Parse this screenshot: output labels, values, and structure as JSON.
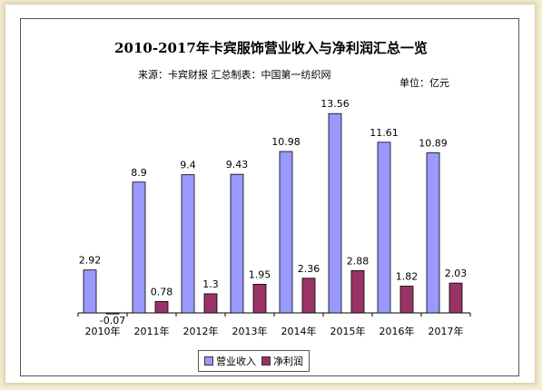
{
  "header": {
    "title": "2010-2017年卡宾服饰营业收入与净利润汇总一览",
    "subtitle": "来源：卡宾财报   汇总制表：中国第一纺织网",
    "unit": "单位：亿元"
  },
  "colors": {
    "revenue": "#9999ff",
    "profit": "#993366"
  },
  "chart_data": {
    "type": "bar",
    "categories": [
      "2010年",
      "2011年",
      "2012年",
      "2013年",
      "2014年",
      "2015年",
      "2016年",
      "2017年"
    ],
    "series": [
      {
        "name": "营业收入",
        "values": [
          2.92,
          8.9,
          9.4,
          9.43,
          10.98,
          13.56,
          11.61,
          10.89
        ]
      },
      {
        "name": "净利润",
        "values": [
          -0.07,
          0.78,
          1.3,
          1.95,
          2.36,
          2.88,
          1.82,
          2.03
        ]
      }
    ],
    "data_labels": {
      "revenue": [
        "2.92",
        "8.9",
        "9.4",
        "9.43",
        "10.98",
        "13.56",
        "11.61",
        "10.89"
      ],
      "profit": [
        "-0.07",
        "0.78",
        "1.3",
        "1.95",
        "2.36",
        "2.88",
        "1.82",
        "2.03"
      ]
    },
    "ylim": [
      0,
      14.5
    ],
    "grid": false,
    "legend_position": "bottom"
  }
}
